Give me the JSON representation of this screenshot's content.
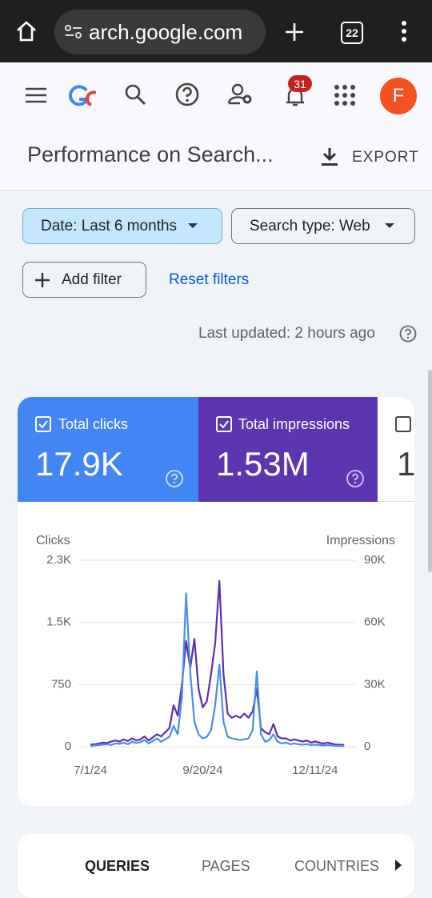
{
  "browser": {
    "url": "arch.google.com",
    "tab_count": "22"
  },
  "header": {
    "notification_count": "31",
    "avatar": "F"
  },
  "page": {
    "title": "Performance on Search...",
    "export": "EXPORT"
  },
  "filters": {
    "date": "Date: Last 6 months",
    "search_type": "Search type: Web",
    "add_filter": "Add filter",
    "reset": "Reset filters"
  },
  "last_updated": "Last updated: 2 hours ago",
  "metrics": [
    {
      "label": "Total clicks",
      "value": "17.9K"
    },
    {
      "label": "Total impressions",
      "value": "1.53M"
    },
    {
      "value": "1"
    }
  ],
  "chart_data": {
    "type": "line",
    "ylabel": "Clicks",
    "y2label": "Impressions",
    "categories": [
      "7/1/24",
      null,
      null,
      null,
      null,
      null,
      null,
      null,
      null,
      null,
      null,
      null,
      null,
      null,
      null,
      null,
      null,
      null,
      null,
      null,
      null,
      null,
      null,
      null,
      null,
      null,
      null,
      "9/20/24",
      null,
      null,
      null,
      null,
      null,
      null,
      null,
      null,
      null,
      null,
      null,
      null,
      null,
      null,
      null,
      null,
      null,
      null,
      null,
      null,
      null,
      null,
      null,
      null,
      null,
      null,
      "12/11/24",
      null,
      null,
      null,
      null,
      null,
      null,
      null
    ],
    "ylim": [
      0,
      2250
    ],
    "yticks": [
      0,
      750,
      {
        "value": 1500,
        "label": "1.5K"
      },
      {
        "value": 2250,
        "label": "2.3K"
      }
    ],
    "y2lim": [
      0,
      90000
    ],
    "y2ticks": [
      0,
      {
        "value": 30000,
        "label": "30K"
      },
      {
        "value": 60000,
        "label": "60K"
      },
      {
        "value": 90000,
        "label": "90K"
      }
    ],
    "grid": true,
    "series": [
      {
        "name": "Clicks",
        "color": "#4a8fe7",
        "values": [
          10,
          15,
          20,
          25,
          30,
          20,
          40,
          35,
          50,
          30,
          60,
          45,
          55,
          80,
          40,
          70,
          100,
          60,
          90,
          120,
          250,
          150,
          600,
          1850,
          900,
          300,
          150,
          100,
          120,
          200,
          500,
          990,
          300,
          120,
          100,
          90,
          80,
          90,
          100,
          200,
          910,
          150,
          60,
          80,
          150,
          60,
          40,
          50,
          30,
          40,
          30,
          25,
          30,
          20,
          25,
          20,
          15,
          20,
          15,
          10,
          10,
          8
        ]
      },
      {
        "name": "Impressions",
        "color": "#5b2fb0",
        "axis": "y2",
        "values": [
          1000,
          1200,
          1500,
          2000,
          1800,
          2500,
          3000,
          2500,
          3500,
          2800,
          4000,
          3000,
          3500,
          5000,
          3000,
          4500,
          6000,
          5000,
          7000,
          9000,
          20000,
          15000,
          30000,
          51000,
          38000,
          52000,
          28000,
          19000,
          22000,
          35000,
          50000,
          80000,
          35000,
          16000,
          14000,
          15000,
          14000,
          16000,
          14000,
          17000,
          28000,
          9000,
          7000,
          6000,
          11000,
          5000,
          4000,
          4000,
          3000,
          3500,
          3000,
          2500,
          3000,
          2000,
          2500,
          2000,
          1500,
          2000,
          1500,
          1000,
          1000,
          800
        ]
      }
    ]
  },
  "tabs": [
    "QUERIES",
    "PAGES",
    "COUNTRIES"
  ]
}
